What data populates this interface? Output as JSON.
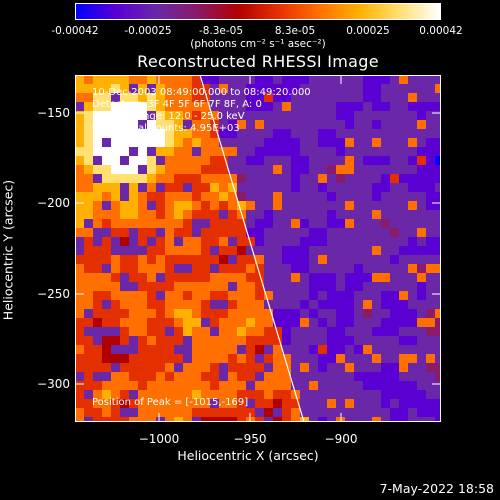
{
  "colorbar": {
    "tick_labels": [
      "-0.00042",
      "-0.00025",
      "-8.3e-05",
      "8.3e-05",
      "0.00025",
      "0.00042"
    ],
    "units": "(photons cm⁻² s⁻¹ asec⁻²)",
    "colors": [
      "#0000ff",
      "#5a00d2",
      "#6a28a8",
      "#8a1a6a",
      "#b00000",
      "#e43000",
      "#ff7000",
      "#ffb000",
      "#ffe070",
      "#ffffff"
    ]
  },
  "plot": {
    "title": "Reconstructed RHESSI Image",
    "xlabel": "Heliocentric X (arcsec)",
    "ylabel": "Heliocentric Y (arcsec)",
    "x_ticks": [
      "−1000",
      "−950",
      "−900"
    ],
    "y_ticks": [
      "−150",
      "−200",
      "−250",
      "−300"
    ],
    "info_lines": [
      "10-Dec-2003 08:49:00.000 to 08:49:20.000",
      "Detectors: 3F 4F 5F 6F 7F 8F, A: 0",
      "Energy Range: 12.0 - 25.0 keV",
      "Clean    Total counts: 4.95E+03"
    ],
    "peak_label": "Position of Peak = [-1015,-169]"
  },
  "footer": {
    "timestamp": "7-May-2022 18:58"
  }
}
